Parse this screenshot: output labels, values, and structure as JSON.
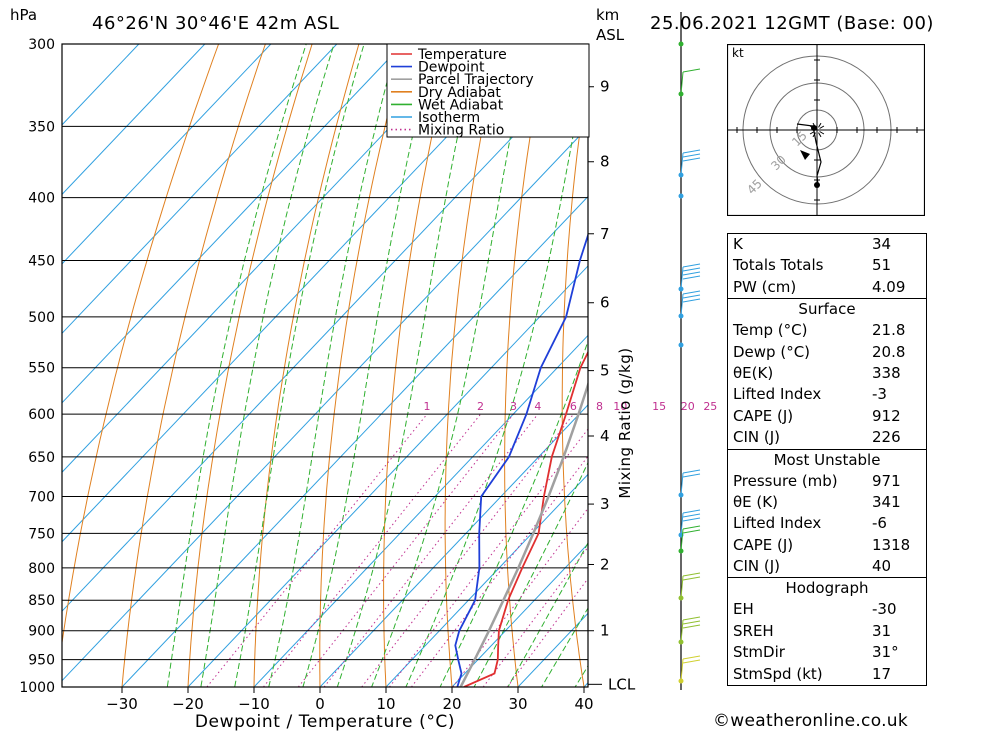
{
  "header": {
    "location": "46°26'N 30°46'E 42m ASL",
    "datetime": "25.06.2021 12GMT (Base: 00)",
    "unit_pressure": "hPa",
    "unit_height_1": "km",
    "unit_height_2": "ASL"
  },
  "axes": {
    "xlabel": "Dewpoint / Temperature (°C)",
    "ylabel": "Mixing Ratio (g/kg)"
  },
  "legend": {
    "items": [
      {
        "label": "Temperature",
        "color": "#e03030",
        "style": "solid"
      },
      {
        "label": "Dewpoint",
        "color": "#1f3fd8",
        "style": "solid"
      },
      {
        "label": "Parcel Trajectory",
        "color": "#a0a0a0",
        "style": "solid"
      },
      {
        "label": "Dry Adiabat",
        "color": "#e08020",
        "style": "solid"
      },
      {
        "label": "Wet Adiabat",
        "color": "#30b030",
        "style": "solid"
      },
      {
        "label": "Isotherm",
        "color": "#30a0e0",
        "style": "solid"
      },
      {
        "label": "Mixing Ratio",
        "color": "#c03090",
        "style": "dotted"
      }
    ]
  },
  "chart_data": {
    "type": "line",
    "x_ticks": [
      -30,
      -20,
      -10,
      0,
      10,
      20,
      30,
      40
    ],
    "pressure_levels": [
      300,
      350,
      400,
      450,
      500,
      550,
      600,
      650,
      700,
      750,
      800,
      850,
      900,
      950,
      1000
    ],
    "height_ticks": [
      {
        "km": "1",
        "p": 900
      },
      {
        "km": "2",
        "p": 795
      },
      {
        "km": "3",
        "p": 710
      },
      {
        "km": "4",
        "p": 625
      },
      {
        "km": "5",
        "p": 553
      },
      {
        "km": "6",
        "p": 487
      },
      {
        "km": "7",
        "p": 428
      },
      {
        "km": "8",
        "p": 374
      },
      {
        "km": "9",
        "p": 325
      }
    ],
    "lcl_label": "LCL",
    "lcl_p": 995,
    "mixing_ratio_labels": [
      "1",
      "2",
      "3",
      "4",
      "6",
      "8",
      "10",
      "15",
      "20",
      "25"
    ],
    "mixing_ratio_values": [
      1,
      2,
      3,
      4,
      6,
      8,
      10,
      15,
      20,
      25
    ],
    "series": [
      {
        "name": "Temperature",
        "points": [
          [
            1000,
            21.8
          ],
          [
            975,
            24.5
          ],
          [
            950,
            23.0
          ],
          [
            925,
            21.0
          ],
          [
            900,
            19.0
          ],
          [
            850,
            16.0
          ],
          [
            800,
            13.5
          ],
          [
            750,
            11.0
          ],
          [
            700,
            6.5
          ],
          [
            650,
            2.0
          ],
          [
            600,
            -2.0
          ],
          [
            550,
            -6.5
          ],
          [
            500,
            -10.0
          ],
          [
            450,
            -15.5
          ],
          [
            400,
            -21.5
          ],
          [
            370,
            -26.0
          ],
          [
            350,
            -28.5
          ],
          [
            300,
            -35.5
          ]
        ]
      },
      {
        "name": "Dewpoint",
        "points": [
          [
            1000,
            20.8
          ],
          [
            975,
            19.5
          ],
          [
            950,
            17.0
          ],
          [
            925,
            14.5
          ],
          [
            900,
            13.0
          ],
          [
            850,
            11.0
          ],
          [
            800,
            7.0
          ],
          [
            750,
            2.0
          ],
          [
            700,
            -3.0
          ],
          [
            650,
            -4.5
          ],
          [
            600,
            -8.0
          ],
          [
            550,
            -12.5
          ],
          [
            500,
            -16.0
          ],
          [
            450,
            -22.0
          ],
          [
            400,
            -28.0
          ],
          [
            370,
            -32.0
          ],
          [
            350,
            -34.5
          ],
          [
            300,
            -41.5
          ]
        ]
      },
      {
        "name": "Parcel Trajectory",
        "points": [
          [
            1000,
            21.3
          ],
          [
            950,
            19.5
          ],
          [
            900,
            17.5
          ],
          [
            850,
            15.3
          ],
          [
            800,
            12.9
          ],
          [
            750,
            10.2
          ],
          [
            700,
            7.2
          ],
          [
            650,
            3.8
          ],
          [
            600,
            -0.1
          ],
          [
            550,
            -4.5
          ],
          [
            500,
            -9.6
          ],
          [
            450,
            -15.4
          ],
          [
            400,
            -22.0
          ],
          [
            350,
            -29.5
          ],
          [
            300,
            -37.5
          ]
        ]
      }
    ]
  },
  "hodograph": {
    "unit": "kt",
    "ring_labels": [
      "15",
      "30",
      "45"
    ]
  },
  "indices": {
    "general": [
      {
        "label": "K",
        "value": "34"
      },
      {
        "label": "Totals Totals",
        "value": "51"
      },
      {
        "label": "PW (cm)",
        "value": "4.09"
      }
    ],
    "surface": {
      "title": "Surface",
      "rows": [
        {
          "label": "Temp (°C)",
          "value": "21.8"
        },
        {
          "label": "Dewp (°C)",
          "value": "20.8"
        },
        {
          "label": "θE(K)",
          "value": "338"
        },
        {
          "label": "Lifted Index",
          "value": "-3"
        },
        {
          "label": "CAPE (J)",
          "value": "912"
        },
        {
          "label": "CIN (J)",
          "value": "226"
        }
      ]
    },
    "most_unstable": {
      "title": "Most Unstable",
      "rows": [
        {
          "label": "Pressure (mb)",
          "value": "971"
        },
        {
          "label": "θE (K)",
          "value": "341"
        },
        {
          "label": "Lifted Index",
          "value": "-6"
        },
        {
          "label": "CAPE (J)",
          "value": "1318"
        },
        {
          "label": "CIN (J)",
          "value": "40"
        }
      ]
    },
    "hodograph": {
      "title": "Hodograph",
      "rows": [
        {
          "label": "EH",
          "value": "-30"
        },
        {
          "label": "SREH",
          "value": "31"
        },
        {
          "label": "StmDir",
          "value": "31°"
        },
        {
          "label": "StmSpd (kt)",
          "value": "17"
        }
      ]
    }
  },
  "credit": "©weatheronline.co.uk"
}
